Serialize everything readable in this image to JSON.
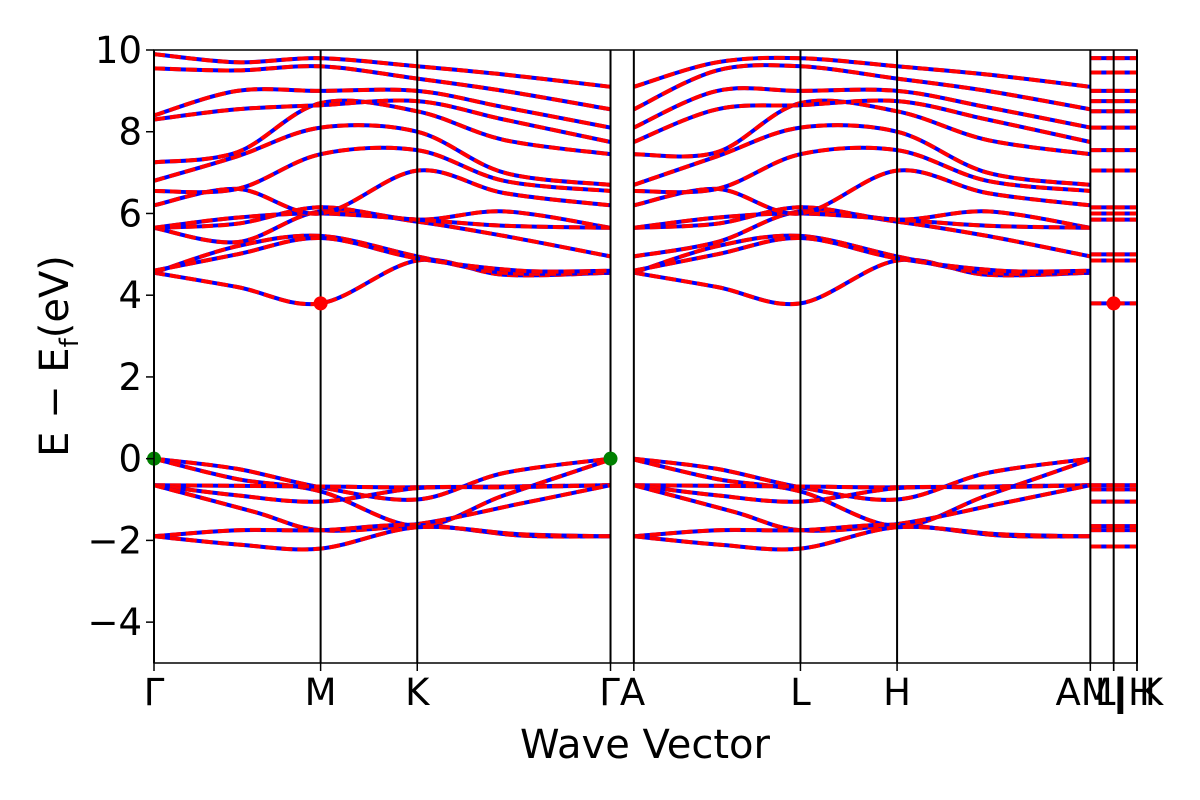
{
  "chart_data": {
    "type": "line",
    "title": "",
    "xlabel": "Wave Vector",
    "ylabel": "E − E_f (eV)",
    "ylabel_parts": {
      "main": "E − E",
      "sub": "f",
      "unit": "(eV)"
    },
    "ylim": [
      -5,
      10
    ],
    "yticks": [
      -4,
      -2,
      0,
      2,
      4,
      6,
      8,
      10
    ],
    "ytick_labels": [
      "−4",
      "−2",
      "0",
      "2",
      "4",
      "6",
      "8",
      "10"
    ],
    "xlim": [
      0,
      5.9
    ],
    "kpath": [
      {
        "label": "Γ",
        "x": 0.0
      },
      {
        "label": "M",
        "x": 1.0
      },
      {
        "label": "K",
        "x": 1.58
      },
      {
        "label": "Γ",
        "x": 2.74
      },
      {
        "label": "A",
        "x": 2.88
      },
      {
        "label": "L",
        "x": 3.88
      },
      {
        "label": "H",
        "x": 4.46
      },
      {
        "label": "A",
        "x": 5.62
      },
      {
        "label": "M",
        "x": 5.76
      },
      {
        "label": "L",
        "x": 5.76
      },
      {
        "label": "H",
        "x": 5.9
      },
      {
        "label": "K",
        "x": 5.9
      }
    ],
    "tick_label_text": [
      "Γ",
      "M",
      "K",
      "ΓA",
      "L",
      "H",
      "AM|",
      "L|H",
      "K"
    ],
    "series": [
      {
        "style": "solid",
        "color": "#0000ff"
      },
      {
        "style": "dashed",
        "color": "#ff0000"
      }
    ],
    "valence_bands": [
      {
        "pts": [
          [
            0,
            0
          ],
          [
            0.5,
            -0.25
          ],
          [
            1.0,
            -0.7
          ],
          [
            1.58,
            -1.0
          ],
          [
            2.1,
            -0.35
          ],
          [
            2.74,
            0
          ],
          [
            2.88,
            0
          ],
          [
            3.38,
            -0.25
          ],
          [
            3.88,
            -0.7
          ],
          [
            4.46,
            -1.0
          ],
          [
            5.0,
            -0.35
          ],
          [
            5.62,
            0
          ]
        ]
      },
      {
        "pts": [
          [
            0,
            0
          ],
          [
            0.5,
            -0.5
          ],
          [
            1.0,
            -0.8
          ],
          [
            1.58,
            -1.65
          ],
          [
            2.1,
            -0.9
          ],
          [
            2.74,
            -0.02
          ],
          [
            2.88,
            -0.02
          ],
          [
            3.38,
            -0.5
          ],
          [
            3.88,
            -0.8
          ],
          [
            4.46,
            -1.65
          ],
          [
            5.0,
            -0.9
          ],
          [
            5.62,
            -0.02
          ]
        ]
      },
      {
        "pts": [
          [
            0,
            -0.65
          ],
          [
            1.0,
            -0.68
          ],
          [
            1.58,
            -0.7
          ],
          [
            2.74,
            -0.65
          ],
          [
            2.88,
            -0.65
          ],
          [
            3.88,
            -0.68
          ],
          [
            4.46,
            -0.7
          ],
          [
            5.62,
            -0.65
          ]
        ]
      },
      {
        "pts": [
          [
            0,
            -0.65
          ],
          [
            0.5,
            -0.9
          ],
          [
            1.0,
            -1.05
          ],
          [
            1.58,
            -0.72
          ],
          [
            2.1,
            -0.7
          ],
          [
            2.74,
            -0.65
          ],
          [
            2.88,
            -0.65
          ],
          [
            3.38,
            -0.9
          ],
          [
            3.88,
            -1.05
          ],
          [
            4.46,
            -0.72
          ],
          [
            5.0,
            -0.7
          ],
          [
            5.62,
            -0.65
          ]
        ]
      },
      {
        "pts": [
          [
            0,
            -0.65
          ],
          [
            0.6,
            -1.3
          ],
          [
            1.0,
            -1.75
          ],
          [
            1.58,
            -1.6
          ],
          [
            2.2,
            -1.1
          ],
          [
            2.74,
            -0.65
          ],
          [
            2.88,
            -0.65
          ],
          [
            3.48,
            -1.3
          ],
          [
            3.88,
            -1.75
          ],
          [
            4.46,
            -1.6
          ],
          [
            5.08,
            -1.1
          ],
          [
            5.62,
            -0.65
          ]
        ]
      },
      {
        "pts": [
          [
            0,
            -1.9
          ],
          [
            0.5,
            -1.75
          ],
          [
            1.0,
            -1.75
          ],
          [
            1.58,
            -1.62
          ],
          [
            2.2,
            -1.88
          ],
          [
            2.74,
            -1.9
          ],
          [
            2.88,
            -1.9
          ],
          [
            3.38,
            -1.75
          ],
          [
            3.88,
            -1.75
          ],
          [
            4.46,
            -1.62
          ],
          [
            5.08,
            -1.88
          ],
          [
            5.62,
            -1.9
          ]
        ]
      },
      {
        "pts": [
          [
            0,
            -1.9
          ],
          [
            0.5,
            -2.1
          ],
          [
            1.0,
            -2.2
          ],
          [
            1.58,
            -1.68
          ],
          [
            2.2,
            -1.85
          ],
          [
            2.74,
            -1.9
          ],
          [
            2.88,
            -1.9
          ],
          [
            3.38,
            -2.1
          ],
          [
            3.88,
            -2.2
          ],
          [
            4.46,
            -1.68
          ],
          [
            5.08,
            -1.85
          ],
          [
            5.62,
            -1.9
          ]
        ]
      }
    ],
    "conduction_bands": [
      {
        "pts": [
          [
            0,
            4.55
          ],
          [
            0.5,
            4.2
          ],
          [
            1.0,
            3.8
          ],
          [
            1.58,
            4.85
          ],
          [
            2.1,
            4.5
          ],
          [
            2.74,
            4.55
          ],
          [
            2.88,
            4.55
          ],
          [
            3.38,
            4.2
          ],
          [
            3.88,
            3.8
          ],
          [
            4.46,
            4.85
          ],
          [
            5.0,
            4.5
          ],
          [
            5.62,
            4.55
          ]
        ]
      },
      {
        "pts": [
          [
            0,
            4.55
          ],
          [
            0.5,
            5.2
          ],
          [
            1.0,
            5.45
          ],
          [
            1.58,
            4.95
          ],
          [
            2.1,
            4.55
          ],
          [
            2.74,
            4.55
          ],
          [
            2.88,
            4.55
          ],
          [
            3.38,
            5.2
          ],
          [
            3.88,
            5.45
          ],
          [
            4.46,
            4.95
          ],
          [
            5.0,
            4.55
          ],
          [
            5.62,
            4.55
          ]
        ]
      },
      {
        "pts": [
          [
            0,
            4.6
          ],
          [
            0.5,
            5.0
          ],
          [
            1.0,
            5.4
          ],
          [
            1.58,
            4.9
          ],
          [
            2.2,
            4.6
          ],
          [
            2.74,
            4.6
          ],
          [
            2.88,
            4.6
          ],
          [
            3.38,
            5.0
          ],
          [
            3.88,
            5.4
          ],
          [
            4.46,
            4.9
          ],
          [
            5.08,
            4.6
          ],
          [
            5.62,
            4.6
          ]
        ]
      },
      {
        "pts": [
          [
            0,
            5.65
          ],
          [
            0.5,
            5.3
          ],
          [
            1.0,
            6.05
          ],
          [
            1.58,
            5.8
          ],
          [
            2.1,
            5.45
          ],
          [
            2.74,
            4.95
          ],
          [
            2.88,
            4.95
          ],
          [
            3.38,
            5.3
          ],
          [
            3.88,
            6.05
          ],
          [
            4.46,
            5.8
          ],
          [
            5.0,
            5.45
          ],
          [
            5.62,
            4.95
          ]
        ]
      },
      {
        "pts": [
          [
            0,
            5.65
          ],
          [
            0.5,
            5.75
          ],
          [
            1.0,
            6.15
          ],
          [
            1.58,
            5.85
          ],
          [
            2.1,
            6.05
          ],
          [
            2.74,
            5.65
          ],
          [
            2.88,
            5.65
          ],
          [
            3.38,
            5.75
          ],
          [
            3.88,
            6.15
          ],
          [
            4.46,
            5.85
          ],
          [
            5.0,
            6.05
          ],
          [
            5.62,
            5.65
          ]
        ]
      },
      {
        "pts": [
          [
            0,
            5.65
          ],
          [
            0.5,
            5.9
          ],
          [
            1.0,
            6.0
          ],
          [
            1.58,
            5.85
          ],
          [
            2.1,
            5.7
          ],
          [
            2.74,
            5.65
          ],
          [
            2.88,
            5.65
          ],
          [
            3.38,
            5.9
          ],
          [
            3.88,
            6.0
          ],
          [
            4.46,
            5.85
          ],
          [
            5.0,
            5.7
          ],
          [
            5.62,
            5.65
          ]
        ]
      },
      {
        "pts": [
          [
            0,
            6.2
          ],
          [
            0.5,
            6.6
          ],
          [
            1.0,
            6.0
          ],
          [
            1.58,
            7.05
          ],
          [
            2.1,
            6.5
          ],
          [
            2.74,
            6.2
          ],
          [
            2.88,
            6.2
          ],
          [
            3.38,
            6.6
          ],
          [
            3.88,
            6.0
          ],
          [
            4.46,
            7.05
          ],
          [
            5.0,
            6.5
          ],
          [
            5.62,
            6.2
          ]
        ]
      },
      {
        "pts": [
          [
            0,
            6.55
          ],
          [
            0.5,
            6.6
          ],
          [
            1.0,
            7.45
          ],
          [
            1.58,
            7.55
          ],
          [
            2.1,
            6.8
          ],
          [
            2.74,
            6.55
          ],
          [
            2.88,
            6.55
          ],
          [
            3.38,
            6.6
          ],
          [
            3.88,
            7.45
          ],
          [
            4.46,
            7.55
          ],
          [
            5.0,
            6.8
          ],
          [
            5.62,
            6.55
          ]
        ]
      },
      {
        "pts": [
          [
            0,
            6.8
          ],
          [
            0.5,
            7.4
          ],
          [
            1.0,
            8.1
          ],
          [
            1.58,
            8.0
          ],
          [
            2.1,
            7.0
          ],
          [
            2.74,
            6.7
          ],
          [
            2.88,
            6.7
          ],
          [
            3.38,
            7.4
          ],
          [
            3.88,
            8.1
          ],
          [
            4.46,
            8.0
          ],
          [
            5.0,
            7.0
          ],
          [
            5.62,
            6.7
          ]
        ]
      },
      {
        "pts": [
          [
            0,
            7.25
          ],
          [
            0.5,
            7.5
          ],
          [
            1.0,
            8.7
          ],
          [
            1.58,
            8.5
          ],
          [
            2.1,
            7.8
          ],
          [
            2.74,
            7.45
          ],
          [
            2.88,
            7.45
          ],
          [
            3.38,
            7.5
          ],
          [
            3.88,
            8.7
          ],
          [
            4.46,
            8.5
          ],
          [
            5.0,
            7.8
          ],
          [
            5.62,
            7.45
          ]
        ]
      },
      {
        "pts": [
          [
            0,
            8.3
          ],
          [
            0.5,
            8.55
          ],
          [
            1.0,
            8.65
          ],
          [
            1.58,
            8.75
          ],
          [
            2.1,
            8.3
          ],
          [
            2.74,
            7.75
          ],
          [
            2.88,
            7.75
          ],
          [
            3.38,
            8.55
          ],
          [
            3.88,
            8.65
          ],
          [
            4.46,
            8.75
          ],
          [
            5.0,
            8.3
          ],
          [
            5.62,
            7.75
          ]
        ]
      },
      {
        "pts": [
          [
            0,
            8.4
          ],
          [
            0.5,
            9.0
          ],
          [
            1.0,
            9.0
          ],
          [
            1.58,
            9.0
          ],
          [
            2.1,
            8.6
          ],
          [
            2.74,
            8.1
          ],
          [
            2.88,
            8.1
          ],
          [
            3.38,
            9.0
          ],
          [
            3.88,
            9.0
          ],
          [
            4.46,
            9.0
          ],
          [
            5.0,
            8.6
          ],
          [
            5.62,
            8.1
          ]
        ]
      },
      {
        "pts": [
          [
            0,
            9.55
          ],
          [
            0.5,
            9.5
          ],
          [
            1.0,
            9.6
          ],
          [
            1.58,
            9.3
          ],
          [
            2.1,
            9.0
          ],
          [
            2.74,
            8.55
          ],
          [
            2.88,
            8.55
          ],
          [
            3.38,
            9.5
          ],
          [
            3.88,
            9.6
          ],
          [
            4.46,
            9.3
          ],
          [
            5.0,
            9.0
          ],
          [
            5.62,
            8.55
          ]
        ]
      },
      {
        "pts": [
          [
            0,
            9.9
          ],
          [
            0.5,
            9.7
          ],
          [
            1.0,
            9.8
          ],
          [
            1.58,
            9.6
          ],
          [
            2.1,
            9.4
          ],
          [
            2.74,
            9.1
          ],
          [
            2.88,
            9.1
          ],
          [
            3.38,
            9.7
          ],
          [
            3.88,
            9.8
          ],
          [
            4.46,
            9.6
          ],
          [
            5.0,
            9.4
          ],
          [
            5.62,
            9.1
          ]
        ]
      }
    ],
    "right_segments": [
      {
        "y": -2.15
      },
      {
        "y": -1.75
      },
      {
        "y": -1.65
      },
      {
        "y": -1.05
      },
      {
        "y": -0.75
      },
      {
        "y": -0.65
      },
      {
        "y": 3.8
      },
      {
        "y": 4.85
      },
      {
        "y": 5.0
      },
      {
        "y": 5.85
      },
      {
        "y": 6.0
      },
      {
        "y": 6.15
      },
      {
        "y": 7.05
      },
      {
        "y": 7.55
      },
      {
        "y": 8.1
      },
      {
        "y": 8.5
      },
      {
        "y": 8.75
      },
      {
        "y": 9.0
      },
      {
        "y": 9.45
      },
      {
        "y": 9.8
      }
    ],
    "markers": [
      {
        "x": 0.0,
        "y": 0.0,
        "color": "#008000",
        "kind": "VBM"
      },
      {
        "x": 2.74,
        "y": 0.0,
        "color": "#008000",
        "kind": "VBM"
      },
      {
        "x": 1.0,
        "y": 3.8,
        "color": "#ff0000",
        "kind": "CBM"
      },
      {
        "x": 5.76,
        "y": 3.8,
        "color": "#ff0000",
        "kind": "CBM"
      }
    ],
    "grid": false,
    "legend": "none"
  }
}
